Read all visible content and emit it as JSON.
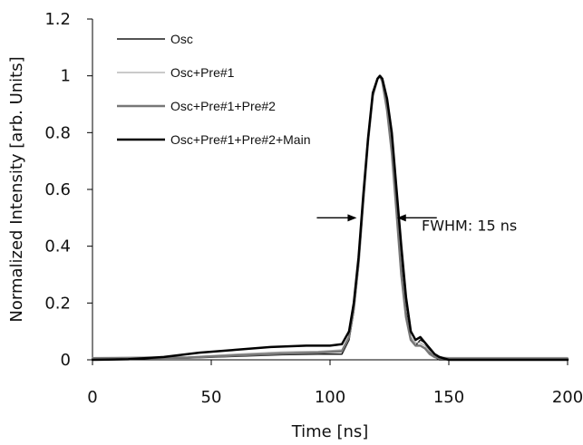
{
  "chart_data": {
    "type": "line",
    "title": "",
    "xlabel": "Time [ns]",
    "ylabel": "Normalized Intensity [arb. Units]",
    "xlim": [
      0,
      200
    ],
    "ylim": [
      0,
      1.2
    ],
    "xticks": [
      0,
      50,
      100,
      150,
      200
    ],
    "yticks": [
      0,
      0.2,
      0.4,
      0.6,
      0.8,
      1,
      1.2
    ],
    "xtick_labels": [
      "0",
      "50",
      "100",
      "150",
      "200"
    ],
    "ytick_labels": [
      "0",
      "0.2",
      "0.4",
      "0.6",
      "0.8",
      "1",
      "1.2"
    ],
    "grid": false,
    "legend_position": "top-left",
    "annotation": {
      "text": "FWHM: 15 ns",
      "left_x": 112,
      "right_x": 127,
      "y": 0.5
    },
    "series": [
      {
        "name": "Osc",
        "color": "#1a1a1a",
        "width": 1.5,
        "x": [
          0,
          20,
          40,
          60,
          80,
          95,
          105,
          108,
          110,
          112,
          114,
          116,
          118,
          120,
          121,
          122,
          124,
          126,
          128,
          130,
          132,
          134,
          136,
          138,
          140,
          142,
          144,
          146,
          150,
          160,
          180,
          200
        ],
        "y": [
          0.005,
          0.005,
          0.006,
          0.012,
          0.018,
          0.02,
          0.02,
          0.07,
          0.17,
          0.33,
          0.55,
          0.76,
          0.93,
          0.99,
          1.0,
          0.98,
          0.9,
          0.76,
          0.55,
          0.34,
          0.17,
          0.07,
          0.05,
          0.07,
          0.06,
          0.03,
          0.01,
          0.0,
          0.0,
          0.0,
          0.0,
          0.0
        ]
      },
      {
        "name": "Osc+Pre#1",
        "color": "#aaaaaa",
        "width": 1.2,
        "x": [
          0,
          20,
          40,
          60,
          80,
          95,
          105,
          108,
          110,
          112,
          114,
          116,
          118,
          120,
          121,
          122,
          124,
          126,
          128,
          130,
          132,
          134,
          136,
          138,
          140,
          142,
          144,
          146,
          150,
          160,
          180,
          200
        ],
        "y": [
          0.008,
          0.01,
          0.01,
          0.02,
          0.028,
          0.03,
          0.035,
          0.08,
          0.18,
          0.34,
          0.56,
          0.77,
          0.93,
          0.99,
          1.0,
          0.98,
          0.89,
          0.74,
          0.53,
          0.32,
          0.16,
          0.08,
          0.06,
          0.06,
          0.05,
          0.03,
          0.015,
          0.01,
          0.008,
          0.008,
          0.008,
          0.008
        ]
      },
      {
        "name": "Osc+Pre#1+Pre#2",
        "color": "#777777",
        "width": 2.5,
        "x": [
          0,
          20,
          40,
          60,
          80,
          95,
          105,
          108,
          110,
          112,
          114,
          116,
          118,
          120,
          121,
          122,
          124,
          126,
          128,
          130,
          132,
          134,
          136,
          138,
          140,
          142,
          144,
          146,
          150,
          160,
          180,
          200
        ],
        "y": [
          0.005,
          0.006,
          0.008,
          0.015,
          0.022,
          0.025,
          0.03,
          0.08,
          0.18,
          0.34,
          0.56,
          0.77,
          0.93,
          0.99,
          1.0,
          0.98,
          0.88,
          0.73,
          0.52,
          0.3,
          0.15,
          0.07,
          0.05,
          0.05,
          0.04,
          0.02,
          0.01,
          0.005,
          0.004,
          0.004,
          0.004,
          0.004
        ]
      },
      {
        "name": "Osc+Pre#1+Pre#2+Main",
        "color": "#000000",
        "width": 2.5,
        "x": [
          0,
          15,
          30,
          45,
          60,
          75,
          90,
          100,
          105,
          108,
          110,
          112,
          114,
          116,
          118,
          120,
          121,
          122,
          124,
          126,
          128,
          130,
          132,
          134,
          136,
          138,
          140,
          142,
          144,
          146,
          150,
          160,
          180,
          200
        ],
        "y": [
          0.0,
          0.002,
          0.01,
          0.025,
          0.035,
          0.045,
          0.05,
          0.05,
          0.055,
          0.1,
          0.2,
          0.36,
          0.58,
          0.78,
          0.94,
          0.99,
          1.0,
          0.99,
          0.92,
          0.8,
          0.6,
          0.4,
          0.22,
          0.1,
          0.07,
          0.08,
          0.06,
          0.04,
          0.02,
          0.01,
          0.0,
          0.0,
          0.0,
          0.0
        ]
      }
    ]
  }
}
